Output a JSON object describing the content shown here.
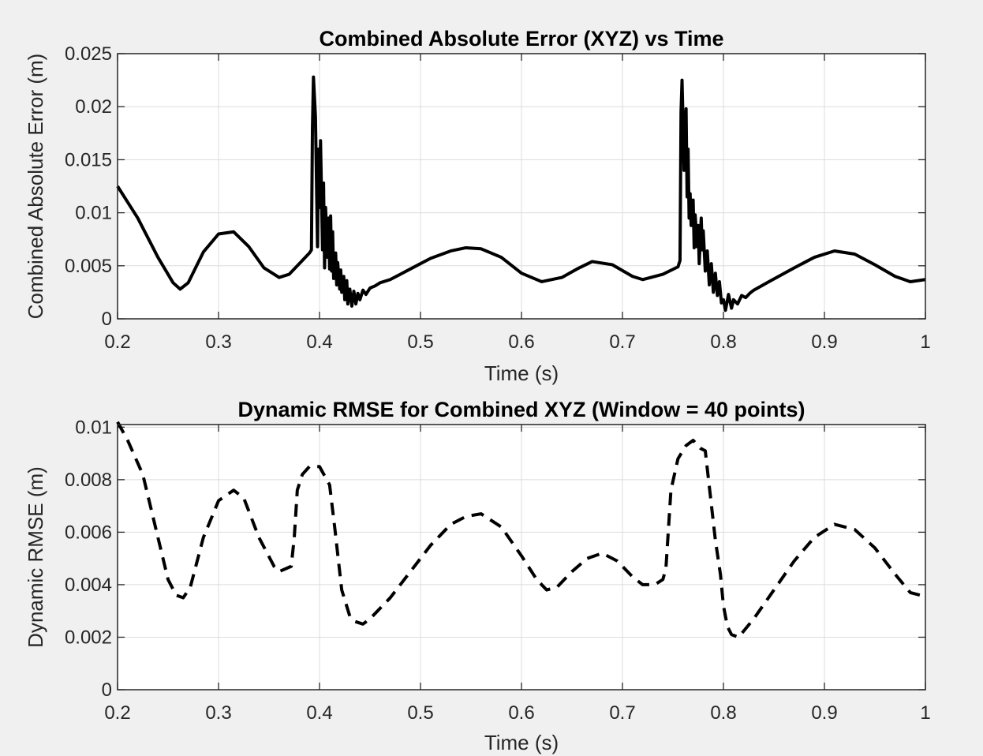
{
  "chart_data": [
    {
      "type": "line",
      "title": "Combined Absolute Error (XYZ) vs Time",
      "xlabel": "Time (s)",
      "ylabel": "Combined Absolute Error (m)",
      "xlim": [
        0.2,
        1
      ],
      "ylim": [
        0,
        0.025
      ],
      "xticks": [
        0.2,
        0.3,
        0.4,
        0.5,
        0.6,
        0.7,
        0.8,
        0.9,
        1
      ],
      "xtick_labels": [
        "0.2",
        "0.3",
        "0.4",
        "0.5",
        "0.6",
        "0.7",
        "0.8",
        "0.9",
        "1"
      ],
      "yticks": [
        0,
        0.005,
        0.01,
        0.015,
        0.02,
        0.025
      ],
      "ytick_labels": [
        "0",
        "0.005",
        "0.01",
        "0.015",
        "0.02",
        "0.025"
      ],
      "grid": true,
      "line_color": "#000000",
      "line_style": "solid",
      "series": [
        {
          "x": [
            0.2,
            0.22,
            0.24,
            0.255,
            0.262,
            0.27,
            0.285,
            0.3,
            0.315,
            0.33,
            0.345,
            0.36,
            0.37,
            0.38,
            0.39,
            0.392,
            0.393,
            0.394,
            0.396,
            0.398,
            0.399,
            0.4,
            0.401,
            0.403,
            0.404,
            0.405,
            0.406,
            0.408,
            0.409,
            0.41,
            0.411,
            0.412,
            0.413,
            0.414,
            0.416,
            0.417,
            0.418,
            0.42,
            0.421,
            0.422,
            0.424,
            0.425,
            0.427,
            0.428,
            0.43,
            0.432,
            0.434,
            0.436,
            0.438,
            0.44,
            0.443,
            0.446,
            0.45,
            0.455,
            0.46,
            0.47,
            0.49,
            0.51,
            0.53,
            0.545,
            0.56,
            0.58,
            0.6,
            0.62,
            0.64,
            0.655,
            0.67,
            0.69,
            0.71,
            0.72,
            0.74,
            0.755,
            0.757,
            0.758,
            0.759,
            0.76,
            0.761,
            0.762,
            0.763,
            0.764,
            0.765,
            0.766,
            0.767,
            0.768,
            0.77,
            0.771,
            0.772,
            0.774,
            0.775,
            0.776,
            0.778,
            0.779,
            0.78,
            0.782,
            0.784,
            0.786,
            0.788,
            0.79,
            0.792,
            0.794,
            0.796,
            0.798,
            0.8,
            0.802,
            0.805,
            0.808,
            0.81,
            0.814,
            0.818,
            0.822,
            0.826,
            0.83,
            0.845,
            0.87,
            0.89,
            0.91,
            0.93,
            0.95,
            0.97,
            0.985,
            1.0
          ],
          "y": [
            0.0125,
            0.0095,
            0.0058,
            0.0034,
            0.0028,
            0.0034,
            0.0063,
            0.008,
            0.0082,
            0.0068,
            0.0048,
            0.0039,
            0.0042,
            0.0052,
            0.0062,
            0.0065,
            0.018,
            0.0228,
            0.019,
            0.0068,
            0.016,
            0.0105,
            0.0168,
            0.0065,
            0.0128,
            0.0048,
            0.0105,
            0.0058,
            0.0095,
            0.0047,
            0.0097,
            0.0045,
            0.0082,
            0.0038,
            0.0062,
            0.0032,
            0.0053,
            0.0028,
            0.0046,
            0.0025,
            0.004,
            0.0018,
            0.0036,
            0.0014,
            0.0028,
            0.0012,
            0.0026,
            0.0014,
            0.0024,
            0.0018,
            0.0027,
            0.0023,
            0.0029,
            0.0031,
            0.0034,
            0.0037,
            0.0047,
            0.0057,
            0.0064,
            0.0067,
            0.0066,
            0.0058,
            0.0043,
            0.0035,
            0.0039,
            0.0047,
            0.0054,
            0.0051,
            0.004,
            0.0037,
            0.0042,
            0.0049,
            0.0055,
            0.0195,
            0.0225,
            0.0185,
            0.014,
            0.018,
            0.0198,
            0.0115,
            0.016,
            0.0095,
            0.0118,
            0.0088,
            0.0112,
            0.0067,
            0.0098,
            0.0068,
            0.0088,
            0.0052,
            0.0095,
            0.0065,
            0.0083,
            0.0045,
            0.0064,
            0.0032,
            0.0052,
            0.0025,
            0.0043,
            0.0022,
            0.0035,
            0.0015,
            0.0018,
            0.0008,
            0.0023,
            0.001,
            0.0018,
            0.0014,
            0.0022,
            0.002,
            0.0024,
            0.0027,
            0.0035,
            0.0048,
            0.0058,
            0.0064,
            0.0061,
            0.0051,
            0.004,
            0.0035,
            0.0037
          ]
        }
      ]
    },
    {
      "type": "line",
      "title": "Dynamic RMSE for Combined XYZ (Window = 40 points)",
      "xlabel": "Time (s)",
      "ylabel": "Dynamic RMSE (m)",
      "xlim": [
        0.2,
        1
      ],
      "ylim": [
        0,
        0.0101
      ],
      "xticks": [
        0.2,
        0.3,
        0.4,
        0.5,
        0.6,
        0.7,
        0.8,
        0.9,
        1
      ],
      "xtick_labels": [
        "0.2",
        "0.3",
        "0.4",
        "0.5",
        "0.6",
        "0.7",
        "0.8",
        "0.9",
        "1"
      ],
      "yticks": [
        0,
        0.002,
        0.004,
        0.006,
        0.008,
        0.01
      ],
      "ytick_labels": [
        "0",
        "0.002",
        "0.004",
        "0.006",
        "0.008",
        "0.01"
      ],
      "grid": true,
      "line_color": "#000000",
      "line_style": "dashed",
      "series": [
        {
          "x": [
            0.2,
            0.21,
            0.225,
            0.24,
            0.25,
            0.258,
            0.265,
            0.272,
            0.285,
            0.3,
            0.315,
            0.325,
            0.34,
            0.355,
            0.36,
            0.372,
            0.375,
            0.378,
            0.383,
            0.39,
            0.4,
            0.41,
            0.415,
            0.422,
            0.43,
            0.435,
            0.443,
            0.45,
            0.47,
            0.49,
            0.51,
            0.53,
            0.545,
            0.56,
            0.58,
            0.6,
            0.615,
            0.625,
            0.635,
            0.65,
            0.665,
            0.68,
            0.695,
            0.71,
            0.72,
            0.732,
            0.74,
            0.743,
            0.748,
            0.755,
            0.763,
            0.77,
            0.777,
            0.782,
            0.787,
            0.792,
            0.797,
            0.8,
            0.804,
            0.808,
            0.815,
            0.83,
            0.85,
            0.87,
            0.89,
            0.91,
            0.93,
            0.95,
            0.97,
            0.985,
            0.995
          ],
          "y": [
            0.0102,
            0.0095,
            0.0082,
            0.0058,
            0.0042,
            0.0036,
            0.0035,
            0.0039,
            0.0058,
            0.0072,
            0.0076,
            0.0073,
            0.0058,
            0.0047,
            0.0045,
            0.0047,
            0.0058,
            0.0076,
            0.0082,
            0.0085,
            0.0085,
            0.0078,
            0.0062,
            0.0038,
            0.0028,
            0.0026,
            0.0025,
            0.0027,
            0.0035,
            0.0045,
            0.0055,
            0.0063,
            0.0066,
            0.0067,
            0.0062,
            0.0051,
            0.0042,
            0.0038,
            0.0039,
            0.0045,
            0.005,
            0.0052,
            0.0049,
            0.0043,
            0.004,
            0.004,
            0.0042,
            0.0046,
            0.0076,
            0.0088,
            0.0093,
            0.0095,
            0.0092,
            0.0091,
            0.0074,
            0.0057,
            0.0044,
            0.0032,
            0.0024,
            0.0021,
            0.002,
            0.0027,
            0.0038,
            0.0049,
            0.0058,
            0.0063,
            0.0061,
            0.0054,
            0.0044,
            0.0037,
            0.0036
          ]
        }
      ]
    }
  ]
}
